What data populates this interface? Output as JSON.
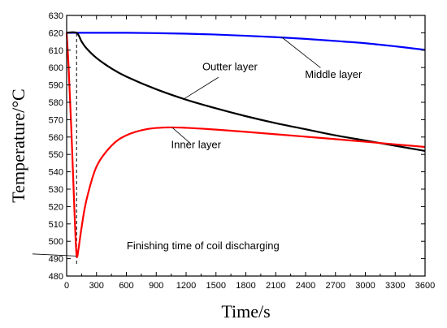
{
  "chart_data": {
    "type": "line",
    "title": "",
    "xlabel": "Time/s",
    "ylabel": "Temperature/°C",
    "xlim": [
      0,
      3600
    ],
    "ylim": [
      480,
      630
    ],
    "xticks": [
      0,
      300,
      600,
      900,
      1200,
      1500,
      1800,
      2100,
      2400,
      2700,
      3000,
      3300,
      3600
    ],
    "yticks": [
      480,
      490,
      500,
      510,
      520,
      530,
      540,
      550,
      560,
      570,
      580,
      590,
      600,
      610,
      620,
      630
    ],
    "grid": false,
    "series": [
      {
        "name": "Middle layer",
        "color": "#0000ff",
        "x": [
          0,
          300,
          600,
          900,
          1200,
          1500,
          1800,
          2100,
          2400,
          2700,
          3000,
          3300,
          3600
        ],
        "y": [
          620,
          620,
          620,
          619.8,
          619.5,
          619,
          618.3,
          617.5,
          616.5,
          615.3,
          614,
          612.2,
          610.2
        ]
      },
      {
        "name": "Outter layer",
        "color": "#000000",
        "x": [
          0,
          100,
          150,
          200,
          300,
          450,
          600,
          900,
          1200,
          1500,
          1800,
          2100,
          2400,
          2700,
          3000,
          3300,
          3600
        ],
        "y": [
          620,
          620,
          615,
          611,
          605.5,
          599.5,
          594.8,
          587.5,
          581.5,
          576.5,
          572,
          568,
          564.5,
          561,
          558,
          555,
          552
        ]
      },
      {
        "name": "Inner layer",
        "color": "#ff0000",
        "x": [
          0,
          20,
          50,
          80,
          100,
          120,
          150,
          200,
          300,
          450,
          600,
          800,
          1000,
          1200,
          1500,
          1800,
          2100,
          2400,
          2700,
          3000,
          3300,
          3600
        ],
        "y": [
          620,
          600,
          560,
          515,
          492,
          496,
          508,
          524,
          543,
          555,
          561,
          564.5,
          565.5,
          565.3,
          564.3,
          563,
          561.6,
          560.2,
          558.8,
          557.3,
          555.8,
          554.3
        ]
      }
    ],
    "annotations": [
      {
        "text": "Outter layer",
        "series": "Outter layer",
        "at_x": 1180,
        "at_y": 582,
        "label_x": 1640,
        "label_y": 598.5
      },
      {
        "text": "Middle layer",
        "series": "Middle layer",
        "at_x": 2160,
        "at_y": 617.5,
        "label_x": 2680,
        "label_y": 594
      },
      {
        "text": "Inner layer",
        "series": "Inner layer",
        "at_x": 1060,
        "at_y": 565.5,
        "label_x": 1300,
        "label_y": 553.5
      },
      {
        "text": "Finishing time of coil discharging",
        "series": "",
        "at_x": 100,
        "at_y": 491.5,
        "label_x": 1370,
        "label_y": 495.5
      }
    ],
    "marker_line": {
      "x": 100,
      "y_from": 487,
      "y_to": 620,
      "style": "dashed"
    }
  }
}
